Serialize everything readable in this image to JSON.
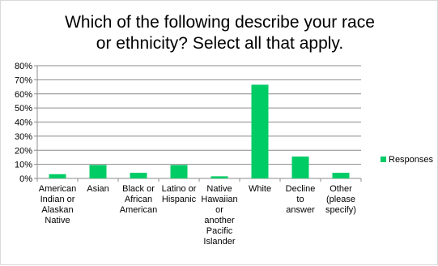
{
  "chart_data": {
    "type": "bar",
    "title_lines": [
      "Which of the following describe your race",
      "or ethnicity? Select all that apply."
    ],
    "categories": [
      [
        "American",
        "Indian or",
        "Alaskan",
        "Native"
      ],
      [
        "Asian"
      ],
      [
        "Black or",
        "African",
        "American"
      ],
      [
        "Latino or",
        "Hispanic"
      ],
      [
        "Native",
        "Hawaiian",
        "or",
        "another",
        "Pacific",
        "Islander"
      ],
      [
        "White"
      ],
      [
        "Decline",
        "to",
        "answer"
      ],
      [
        "Other",
        "(please",
        "specify)"
      ]
    ],
    "series": [
      {
        "name": "Responses",
        "values": [
          0.03,
          0.095,
          0.04,
          0.095,
          0.015,
          0.665,
          0.155,
          0.04
        ]
      }
    ],
    "ylim": [
      0,
      0.8
    ],
    "y_ticks": [
      "0%",
      "10%",
      "20%",
      "30%",
      "40%",
      "50%",
      "60%",
      "70%",
      "80%"
    ],
    "grid": true,
    "legend_position": "right",
    "colors": {
      "bar": "#00cc66",
      "grid": "#8c8c8c",
      "axis": "#8c8c8c"
    }
  }
}
